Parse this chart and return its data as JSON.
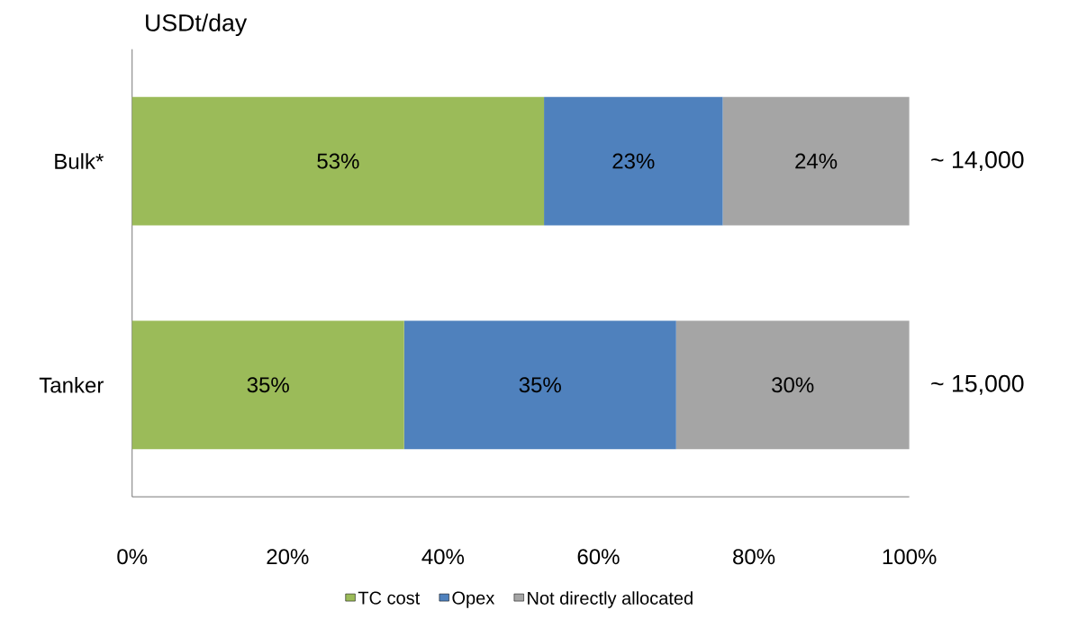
{
  "chart_data": {
    "type": "bar",
    "orientation": "horizontal",
    "stacked": true,
    "ylabel": "USDt/day",
    "categories": [
      "Bulk*",
      "Tanker"
    ],
    "series": [
      {
        "name": "TC cost",
        "color": "#9bbb59",
        "values": [
          53,
          35
        ],
        "value_labels": [
          "53%",
          "35%"
        ]
      },
      {
        "name": "Opex",
        "color": "#4f81bd",
        "values": [
          23,
          35
        ],
        "value_labels": [
          "23%",
          "35%"
        ]
      },
      {
        "name": "Not directly allocated",
        "color": "#a5a5a5",
        "values": [
          24,
          30
        ],
        "value_labels": [
          "24%",
          "30%"
        ]
      }
    ],
    "xlim": [
      0,
      100
    ],
    "xticks": [
      {
        "value": 0,
        "label": "0%"
      },
      {
        "value": 20,
        "label": "20%"
      },
      {
        "value": 40,
        "label": "40%"
      },
      {
        "value": 60,
        "label": "60%"
      },
      {
        "value": 80,
        "label": "80%"
      },
      {
        "value": 100,
        "label": "100%"
      }
    ],
    "annotations": [
      "~ 14,000",
      "~ 15,000"
    ],
    "legend": "bottom"
  }
}
